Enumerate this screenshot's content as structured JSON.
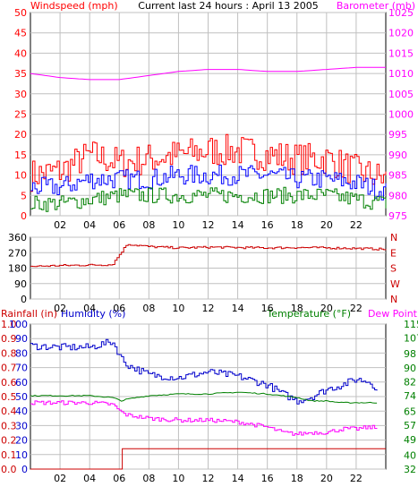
{
  "title": "Current last 24 hours : April 13 2005",
  "colors": {
    "frame": "#000000",
    "grid": "#c0c0c0",
    "windspeed": "#ff0000",
    "windavg": "#0000ff",
    "windlow": "#008000",
    "barometer": "#ff00ff",
    "direction": "#cc0000",
    "rainfall": "#cc0000",
    "humidity": "#0000cc",
    "temperature": "#008000",
    "dewpoint": "#ff00ff"
  },
  "chart_data": [
    {
      "type": "line",
      "panel": "wind-barometer",
      "x": [
        0,
        2,
        4,
        6,
        8,
        10,
        12,
        14,
        16,
        18,
        20,
        22,
        24
      ],
      "xticklabels": [
        "02",
        "04",
        "06",
        "08",
        "10",
        "12",
        "14",
        "16",
        "18",
        "20",
        "22"
      ],
      "left_axis": {
        "label": "Windspeed (mph)",
        "ylim": [
          0,
          50
        ],
        "ticks": [
          0,
          5,
          10,
          15,
          20,
          25,
          30,
          35,
          40,
          45,
          50
        ]
      },
      "right_axis": {
        "label": "Barometer (mb)",
        "ylim": [
          975,
          1025
        ],
        "ticks": [
          975,
          980,
          985,
          990,
          995,
          1000,
          1005,
          1010,
          1015,
          1020,
          1025
        ]
      },
      "series": [
        {
          "key": "gust",
          "axis": "left",
          "values": [
            10,
            11,
            15,
            13,
            14,
            15,
            16,
            16,
            15,
            14,
            14,
            11,
            9
          ]
        },
        {
          "key": "avg",
          "axis": "left",
          "values": [
            7,
            7,
            9,
            9,
            9,
            10,
            10,
            10,
            10,
            9,
            9,
            8,
            6
          ]
        },
        {
          "key": "low",
          "axis": "left",
          "values": [
            3,
            3,
            4,
            5,
            5,
            5,
            5,
            5,
            5,
            5,
            5,
            4,
            3
          ]
        },
        {
          "key": "barometer",
          "axis": "right",
          "values": [
            1010.0,
            1009.0,
            1008.5,
            1008.5,
            1009.5,
            1010.5,
            1011.0,
            1011.0,
            1010.5,
            1010.5,
            1011.0,
            1011.5,
            1011.5
          ]
        }
      ]
    },
    {
      "type": "line",
      "panel": "wind-direction",
      "x": [
        0,
        2,
        4,
        5.5,
        6.5,
        8,
        10,
        12,
        14,
        16,
        18,
        20,
        22,
        24
      ],
      "xticklabels": [
        "02",
        "04",
        "06",
        "08",
        "10",
        "12",
        "14",
        "16",
        "18",
        "20",
        "22"
      ],
      "left_axis": {
        "ylim": [
          0,
          360
        ],
        "ticks": [
          0,
          90,
          180,
          270,
          360
        ]
      },
      "right_axis": {
        "ticklabels": [
          "N",
          "W",
          "S",
          "E",
          "N"
        ]
      },
      "series": [
        {
          "key": "direction",
          "values": [
            190,
            195,
            198,
            200,
            320,
            305,
            298,
            302,
            300,
            298,
            300,
            298,
            295,
            290
          ]
        }
      ]
    },
    {
      "type": "line",
      "panel": "rain-humidity-temperature",
      "x": [
        0,
        2,
        4,
        5.5,
        6.2,
        6.5,
        8,
        10,
        12,
        14,
        16,
        17,
        18,
        19,
        20,
        21,
        22,
        23,
        23.5
      ],
      "xticklabels": [
        "02",
        "04",
        "06",
        "08",
        "10",
        "12",
        "14",
        "16",
        "18",
        "20",
        "22"
      ],
      "left_axis": {
        "labels": [
          "Rainfall (in)",
          "Humidity (%)"
        ],
        "rain_ticks": [
          0.0,
          0.1,
          0.2,
          0.3,
          0.4,
          0.5,
          0.6,
          0.7,
          0.8,
          0.9,
          1.0
        ],
        "humidity_ticks": [
          0,
          10,
          20,
          30,
          40,
          50,
          60,
          70,
          80,
          90,
          100
        ],
        "ylim": [
          0,
          100
        ]
      },
      "right_axis": {
        "labels": [
          "Temperature (°F)",
          "Dew Point"
        ],
        "ylim": [
          32,
          115
        ],
        "ticks": [
          32,
          40,
          49,
          57,
          65,
          74,
          82,
          90,
          98,
          107,
          115
        ]
      },
      "series": [
        {
          "key": "humidity",
          "axis": "left",
          "values": [
            85,
            84,
            84,
            88,
            75,
            72,
            65,
            63,
            67,
            64,
            58,
            52,
            47,
            50,
            55,
            58,
            62,
            60,
            52
          ]
        },
        {
          "key": "temperature",
          "axis": "right",
          "values": [
            74,
            74,
            74,
            73,
            71,
            72,
            74,
            75,
            75,
            76,
            75,
            74,
            73,
            71,
            71,
            70,
            70,
            70,
            70
          ]
        },
        {
          "key": "dewpoint",
          "axis": "right",
          "values": [
            70,
            70,
            70,
            69,
            64,
            63,
            61,
            60,
            60,
            59,
            56,
            53,
            52,
            53,
            53,
            55,
            55,
            56,
            55
          ]
        },
        {
          "key": "rainfall",
          "axis": "left",
          "values": [
            0.0,
            0.0,
            0.0,
            0.0,
            0.14,
            0.14,
            0.14,
            0.14,
            0.14,
            0.14,
            0.14,
            0.14,
            0.14,
            0.14,
            0.14,
            0.14,
            0.14,
            0.14,
            0.14
          ]
        }
      ]
    }
  ]
}
